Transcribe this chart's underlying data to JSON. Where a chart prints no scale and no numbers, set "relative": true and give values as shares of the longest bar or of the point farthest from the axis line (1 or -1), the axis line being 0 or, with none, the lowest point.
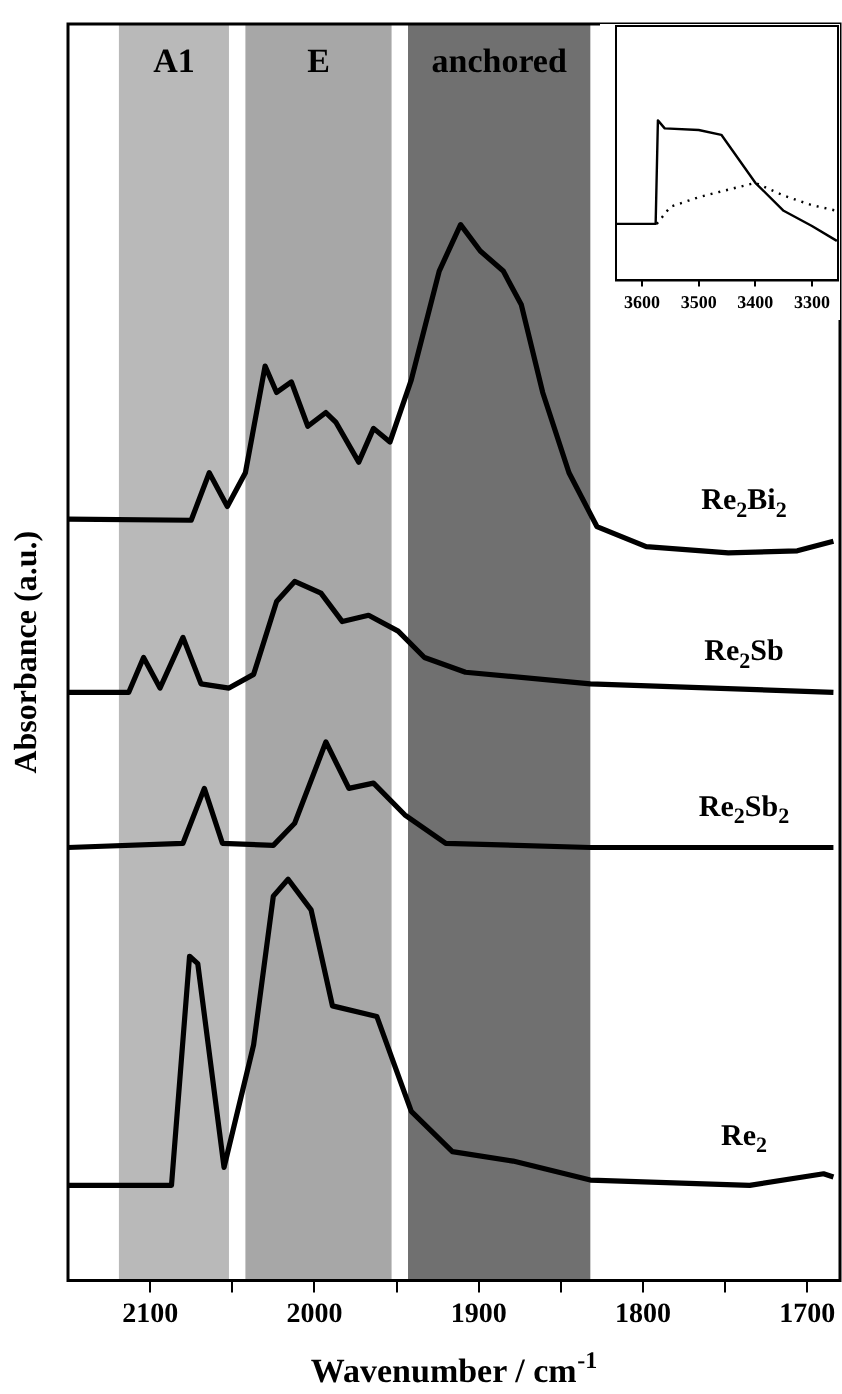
{
  "chart_data": [
    {
      "type": "line",
      "xlabel": "Wavenumber / cm$^{-1}$",
      "ylabel": "Absorbance (a.u.)",
      "relative": true,
      "marker": "none",
      "xlim": [
        2150,
        1680
      ],
      "xticks": [
        2100,
        {
          "value": 2050,
          "label": null
        },
        2000,
        {
          "value": 1950,
          "label": null
        },
        1900,
        {
          "value": 1850,
          "label": null
        },
        1800,
        {
          "value": 1750,
          "label": null
        },
        1700
      ],
      "bands": [
        {
          "axis": "x",
          "from": 2119,
          "to": 2052,
          "label": "A1",
          "color": "#b9b9b9"
        },
        {
          "axis": "x",
          "from": 2042,
          "to": 1953,
          "label": "E",
          "color": "#a7a7a7"
        },
        {
          "axis": "x",
          "from": 1943,
          "to": 1832,
          "label": "anchored",
          "color": "#707070"
        }
      ],
      "series": [
        {
          "name": "Re$_{2}$Bi$_{2}$",
          "color": "#000000",
          "x": [
            2150,
            2075,
            2064,
            2053,
            2042,
            2030,
            2023,
            2014,
            2004,
            1993,
            1987,
            1973,
            1964,
            1954,
            1941,
            1924,
            1911,
            1899,
            1885,
            1874,
            1861,
            1845,
            1828,
            1798,
            1748,
            1706,
            1684
          ],
          "values": [
            0.721,
            0.72,
            0.765,
            0.733,
            0.765,
            0.866,
            0.841,
            0.851,
            0.809,
            0.822,
            0.813,
            0.775,
            0.807,
            0.794,
            0.853,
            0.956,
            1,
            0.975,
            0.956,
            0.924,
            0.841,
            0.765,
            0.714,
            0.695,
            0.689,
            0.691,
            0.7
          ]
        },
        {
          "name": "Re$_{2}$Sb",
          "color": "#000000",
          "x": [
            2150,
            2113,
            2104,
            2094,
            2080,
            2069,
            2052,
            2037,
            2023,
            2012,
            1996,
            1983,
            1967,
            1949,
            1933,
            1908,
            1832,
            1684
          ],
          "values": [
            0.557,
            0.557,
            0.59,
            0.561,
            0.609,
            0.565,
            0.561,
            0.574,
            0.643,
            0.662,
            0.651,
            0.624,
            0.63,
            0.615,
            0.59,
            0.576,
            0.565,
            0.557
          ]
        },
        {
          "name": "Re$_{2}$Sb$_{2}$",
          "color": "#000000",
          "x": [
            2150,
            2080,
            2067,
            2056,
            2025,
            2012,
            1993,
            1979,
            1964,
            1945,
            1920,
            1832,
            1684
          ],
          "values": [
            0.41,
            0.414,
            0.466,
            0.414,
            0.412,
            0.433,
            0.51,
            0.466,
            0.471,
            0.441,
            0.414,
            0.41,
            0.41
          ]
        },
        {
          "name": "Re$_{2}$",
          "color": "#000000",
          "x": [
            2150,
            2087,
            2076,
            2071,
            2055,
            2037,
            2025,
            2016,
            2002,
            1989,
            1962,
            1941,
            1916,
            1879,
            1832,
            1735,
            1690,
            1684
          ],
          "values": [
            0.09,
            0.09,
            0.307,
            0.3,
            0.107,
            0.223,
            0.364,
            0.38,
            0.351,
            0.26,
            0.25,
            0.16,
            0.122,
            0.113,
            0.095,
            0.09,
            0.101,
            0.098
          ]
        }
      ]
    },
    {
      "type": "line",
      "relative": true,
      "marker": "none",
      "xlim": [
        3646,
        3254
      ],
      "xticks": [
        3600,
        3500,
        3400,
        3300
      ],
      "series": [
        {
          "color": "#000000",
          "x": [
            3646,
            3576,
            3572,
            3560,
            3500,
            3460,
            3440,
            3400,
            3350,
            3300,
            3256
          ],
          "values": [
            0.353,
            0.353,
            1,
            0.95,
            0.94,
            0.91,
            0.81,
            0.61,
            0.435,
            0.34,
            0.247
          ]
        },
        {
          "color": "#000000",
          "line_style": "dotted",
          "x": [
            3574,
            3550,
            3500,
            3450,
            3400,
            3350,
            3300,
            3256
          ],
          "values": [
            0.353,
            0.46,
            0.52,
            0.565,
            0.61,
            0.53,
            0.47,
            0.435
          ]
        }
      ]
    }
  ]
}
